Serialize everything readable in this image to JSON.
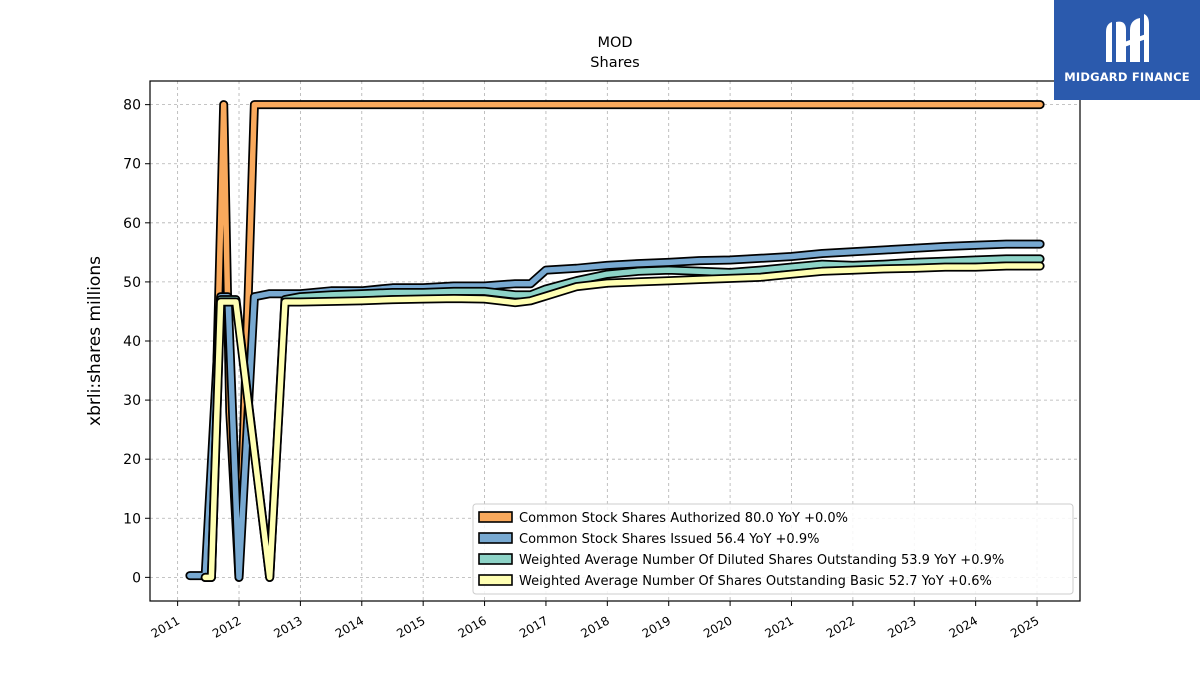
{
  "brand": {
    "name": "MIDGARD FINANCE",
    "logo_icon": "midgard-m-logo-icon",
    "color": "#2b5aad"
  },
  "chart_data": {
    "type": "line",
    "title": "MOD",
    "subtitle": "Shares",
    "ylabel": "xbrli:shares millions",
    "xlabel": "",
    "xlim": [
      2010.55,
      2025.7
    ],
    "ylim": [
      -4,
      84
    ],
    "grid": true,
    "legend_position": "lower-right",
    "x_ticks": [
      2011,
      2012,
      2013,
      2014,
      2015,
      2016,
      2017,
      2018,
      2019,
      2020,
      2021,
      2022,
      2023,
      2024,
      2025
    ],
    "x_tick_labels": [
      "2011",
      "2012",
      "2013",
      "2014",
      "2015",
      "2016",
      "2017",
      "2018",
      "2019",
      "2020",
      "2021",
      "2022",
      "2023",
      "2024",
      "2025"
    ],
    "y_ticks": [
      0,
      10,
      20,
      30,
      40,
      50,
      60,
      70,
      80
    ],
    "y_tick_labels": [
      "0",
      "10",
      "20",
      "30",
      "40",
      "50",
      "60",
      "70",
      "80"
    ],
    "series": [
      {
        "name": "Common Stock Shares Authorized",
        "legend_label": "Common Stock Shares Authorized  80.0 YoY +0.0%",
        "color": "#f9a95c",
        "points": [
          [
            2011.45,
            0
          ],
          [
            2011.55,
            0
          ],
          [
            2011.75,
            80
          ],
          [
            2011.85,
            28
          ],
          [
            2012.0,
            0
          ],
          [
            2012.25,
            80
          ],
          [
            2025.05,
            80
          ]
        ]
      },
      {
        "name": "Common Stock Shares Issued",
        "legend_label": "Common Stock Shares Issued  56.4 YoY +0.9%",
        "color": "#78a9d1",
        "points": [
          [
            2011.2,
            0.3
          ],
          [
            2011.45,
            0.3
          ],
          [
            2011.7,
            47.5
          ],
          [
            2011.82,
            47.5
          ],
          [
            2012.0,
            0
          ],
          [
            2012.25,
            47.5
          ],
          [
            2012.5,
            48
          ],
          [
            2013.0,
            48
          ],
          [
            2013.5,
            48.5
          ],
          [
            2014.0,
            48.5
          ],
          [
            2014.5,
            49
          ],
          [
            2015.0,
            49
          ],
          [
            2015.5,
            49.3
          ],
          [
            2016.0,
            49.3
          ],
          [
            2016.5,
            49.7
          ],
          [
            2016.75,
            49.7
          ],
          [
            2017.0,
            52
          ],
          [
            2017.5,
            52.3
          ],
          [
            2018.0,
            52.8
          ],
          [
            2018.5,
            53.1
          ],
          [
            2019.0,
            53.3
          ],
          [
            2019.5,
            53.6
          ],
          [
            2020.0,
            53.7
          ],
          [
            2020.5,
            54
          ],
          [
            2021.0,
            54.3
          ],
          [
            2021.5,
            54.8
          ],
          [
            2022.0,
            55.1
          ],
          [
            2022.5,
            55.4
          ],
          [
            2023.0,
            55.7
          ],
          [
            2023.5,
            56
          ],
          [
            2024.0,
            56.2
          ],
          [
            2024.5,
            56.4
          ],
          [
            2025.05,
            56.4
          ]
        ]
      },
      {
        "name": "Weighted Average Number Of Diluted Shares Outstanding",
        "legend_label": "Weighted Average Number Of Diluted Shares Outstanding  53.9 YoY +0.9%",
        "color": "#8dd3c7",
        "points": [
          [
            2011.45,
            0
          ],
          [
            2011.55,
            0
          ],
          [
            2011.7,
            47
          ],
          [
            2011.95,
            47
          ],
          [
            2012.5,
            0
          ],
          [
            2012.75,
            47
          ],
          [
            2013.0,
            47.5
          ],
          [
            2013.5,
            47.8
          ],
          [
            2014.0,
            48
          ],
          [
            2014.5,
            48.2
          ],
          [
            2015.0,
            48.2
          ],
          [
            2015.5,
            48.4
          ],
          [
            2016.0,
            48.4
          ],
          [
            2016.5,
            47.8
          ],
          [
            2016.75,
            47.8
          ],
          [
            2017.0,
            48.8
          ],
          [
            2017.5,
            50.2
          ],
          [
            2018.0,
            51.3
          ],
          [
            2018.5,
            51.8
          ],
          [
            2019.0,
            52
          ],
          [
            2019.5,
            51.8
          ],
          [
            2020.0,
            51.6
          ],
          [
            2020.5,
            52
          ],
          [
            2021.0,
            52.5
          ],
          [
            2021.5,
            53
          ],
          [
            2022.0,
            52.8
          ],
          [
            2022.5,
            53
          ],
          [
            2023.0,
            53.3
          ],
          [
            2023.5,
            53.5
          ],
          [
            2024.0,
            53.7
          ],
          [
            2024.5,
            53.9
          ],
          [
            2025.05,
            53.9
          ]
        ]
      },
      {
        "name": "Weighted Average Number Of Shares Outstanding Basic",
        "legend_label": "Weighted Average Number Of Shares Outstanding Basic  52.7 YoY +0.6%",
        "color": "#ffffb3",
        "points": [
          [
            2011.45,
            0
          ],
          [
            2011.55,
            0
          ],
          [
            2011.7,
            46.6
          ],
          [
            2011.95,
            46.6
          ],
          [
            2012.5,
            0
          ],
          [
            2012.75,
            46.6
          ],
          [
            2013.0,
            46.6
          ],
          [
            2013.5,
            46.7
          ],
          [
            2014.0,
            46.8
          ],
          [
            2014.5,
            47
          ],
          [
            2015.0,
            47.1
          ],
          [
            2015.5,
            47.2
          ],
          [
            2016.0,
            47.1
          ],
          [
            2016.5,
            46.5
          ],
          [
            2016.75,
            46.8
          ],
          [
            2017.0,
            47.6
          ],
          [
            2017.5,
            49.2
          ],
          [
            2018.0,
            49.8
          ],
          [
            2018.5,
            50
          ],
          [
            2019.0,
            50.2
          ],
          [
            2019.5,
            50.4
          ],
          [
            2020.0,
            50.6
          ],
          [
            2020.5,
            50.8
          ],
          [
            2021.0,
            51.3
          ],
          [
            2021.5,
            51.8
          ],
          [
            2022.0,
            52
          ],
          [
            2022.5,
            52.2
          ],
          [
            2023.0,
            52.3
          ],
          [
            2023.5,
            52.5
          ],
          [
            2024.0,
            52.5
          ],
          [
            2024.5,
            52.7
          ],
          [
            2025.05,
            52.7
          ]
        ]
      }
    ]
  }
}
